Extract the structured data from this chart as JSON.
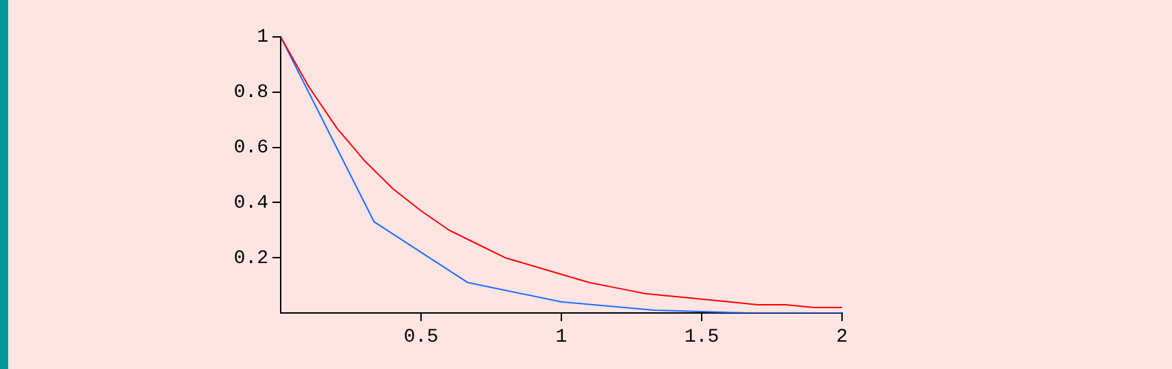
{
  "chart_data": {
    "type": "line",
    "x": [
      0,
      0.1,
      0.2,
      0.3,
      0.4,
      0.5,
      0.6,
      0.7,
      0.8,
      0.9,
      1,
      1.1,
      1.2,
      1.3,
      1.4,
      1.5,
      1.6,
      1.7,
      1.8,
      1.9,
      2
    ],
    "series": [
      {
        "color": "#ff0000",
        "values": [
          1,
          0.82,
          0.67,
          0.55,
          0.45,
          0.37,
          0.3,
          0.25,
          0.2,
          0.17,
          0.14,
          0.11,
          0.09,
          0.07,
          0.06,
          0.05,
          0.04,
          0.03,
          0.03,
          0.02,
          0.02
        ]
      },
      {
        "color": "#1a6cff",
        "x": [
          0,
          0.333,
          0.667,
          1,
          1.333,
          1.667,
          2
        ],
        "values": [
          1,
          0.33,
          0.11,
          0.04,
          0.01,
          0,
          0
        ]
      }
    ],
    "xlim": [
      0,
      2
    ],
    "ylim": [
      0,
      1
    ],
    "xticks": [
      0.5,
      1,
      1.5,
      2
    ],
    "yticks": [
      0.2,
      0.4,
      0.6,
      0.8,
      1
    ],
    "grid": false,
    "legend": false,
    "marker": "none",
    "line_style": "solid"
  }
}
